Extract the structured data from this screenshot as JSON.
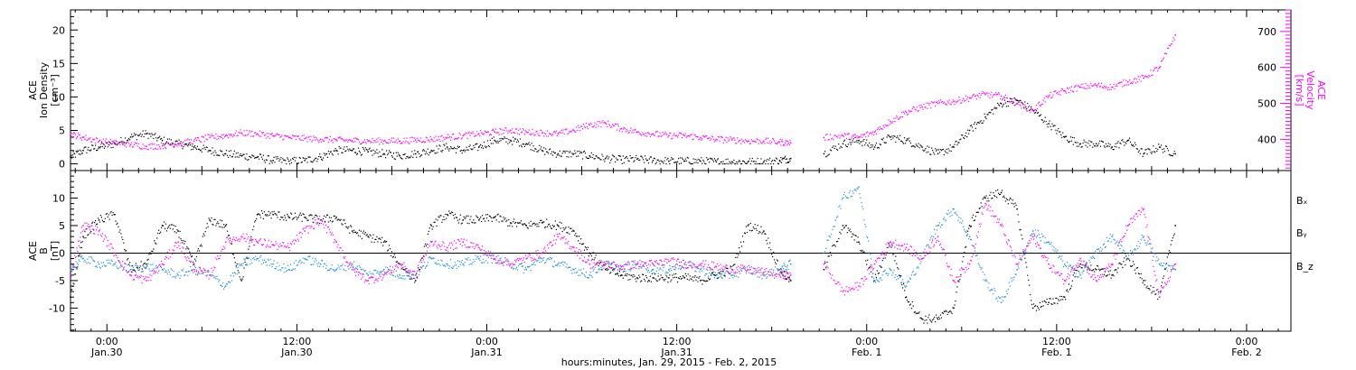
{
  "chart_data": [
    {
      "type": "scatter",
      "panel": "top",
      "ylabel_left": [
        "ACE",
        "Ion Density",
        "[cm⁻³]"
      ],
      "ylabel_right": [
        "ACE",
        "Velocity",
        "[km/s]"
      ],
      "xlabel": "hours:minutes, Jan. 29, 2015 - Feb.  2, 2015",
      "x_ticks": [
        {
          "time": "0:00",
          "date": "Jan.30",
          "hours": 0
        },
        {
          "time": "12:00",
          "date": "Jan.30",
          "hours": 12
        },
        {
          "time": "0:00",
          "date": "Jan.31",
          "hours": 24
        },
        {
          "time": "12:00",
          "date": "Jan.31",
          "hours": 36
        },
        {
          "time": "0:00",
          "date": "Feb. 1",
          "hours": 48
        },
        {
          "time": "12:00",
          "date": "Feb. 1",
          "hours": 60
        },
        {
          "time": "0:00",
          "date": "Feb. 2",
          "hours": 72
        }
      ],
      "xlim_hours": [
        -2.3,
        74.8
      ],
      "y_left": {
        "ticks": [
          0,
          5,
          10,
          15,
          20
        ],
        "lim": [
          -1,
          23
        ]
      },
      "y_right": {
        "ticks": [
          400,
          500,
          600,
          700
        ],
        "lim": [
          313,
          760
        ]
      },
      "series": [
        {
          "axis": "left",
          "color": "#000000",
          "x": [
            -2.3,
            -1.5,
            -0.5,
            0.5,
            1.5,
            2.5,
            3.5,
            4.5,
            5.5,
            6.5,
            7.5,
            8.5,
            9.5,
            10.5,
            11.5,
            12.5,
            13.5,
            14.5,
            15.5,
            16.5,
            17.5,
            18.5,
            19.5,
            20.5,
            21.5,
            22.5,
            23.5,
            24.5,
            25.5,
            26.5,
            27.5,
            28.5,
            29.5,
            30.5,
            31.5,
            32.5,
            33.5,
            34.5,
            35.5,
            36.5,
            37.5,
            38.5,
            39.5,
            40.5,
            41.5,
            42.5,
            43.2,
            45.3,
            46.5,
            47.5,
            48.5,
            49.5,
            50.5,
            51.5,
            52.5,
            53.5,
            54.5,
            55.5,
            56.5,
            57.5,
            58.5,
            59.5,
            60.5,
            61.5,
            62.5,
            63.5,
            64.5,
            65.5,
            66.5,
            67.5
          ],
          "y": [
            1.0,
            2.0,
            2.5,
            3.0,
            4.0,
            4.5,
            3.5,
            3.0,
            2.5,
            2.0,
            1.5,
            1.2,
            1.0,
            0.5,
            0.4,
            0.5,
            1.0,
            2.0,
            2.0,
            1.8,
            1.5,
            1.2,
            1.5,
            2.0,
            2.5,
            2.0,
            2.5,
            3.5,
            3.5,
            3.0,
            2.0,
            1.5,
            1.5,
            1.2,
            0.8,
            0.6,
            0.7,
            0.5,
            0.4,
            0.4,
            0.4,
            0.3,
            0.3,
            0.3,
            0.3,
            0.5,
            0.8,
            1.5,
            3.0,
            3.5,
            2.5,
            4.0,
            3.5,
            2.5,
            1.5,
            2.5,
            5.0,
            7.0,
            9.0,
            9.5,
            8.0,
            6.0,
            4.0,
            3.0,
            3.0,
            2.5,
            3.5,
            1.5,
            2.5,
            1.5
          ]
        },
        {
          "axis": "right",
          "color": "#ff00ff",
          "x": [
            -2.3,
            -1.5,
            -0.5,
            0.5,
            1.5,
            2.5,
            3.5,
            4.5,
            5.5,
            6.5,
            7.5,
            8.5,
            9.5,
            10.5,
            11.5,
            12.5,
            13.5,
            14.5,
            15.5,
            16.5,
            17.5,
            18.5,
            19.5,
            20.5,
            21.5,
            22.5,
            23.5,
            24.5,
            25.5,
            26.5,
            27.5,
            28.5,
            29.5,
            30.5,
            31.5,
            32.5,
            33.5,
            34.5,
            35.5,
            36.5,
            37.5,
            38.5,
            39.5,
            40.5,
            41.5,
            42.5,
            43.2,
            45.3,
            46.5,
            47.5,
            48.5,
            49.5,
            50.5,
            51.5,
            52.5,
            53.5,
            54.5,
            55.5,
            56.5,
            57.5,
            58.5,
            59.5,
            60.5,
            61.5,
            62.5,
            63.5,
            64.5,
            65.5,
            66.5,
            67.5
          ],
          "y": [
            415,
            405,
            395,
            390,
            385,
            380,
            382,
            388,
            395,
            405,
            410,
            418,
            415,
            410,
            405,
            402,
            400,
            398,
            396,
            395,
            395,
            395,
            398,
            400,
            405,
            410,
            415,
            420,
            425,
            420,
            418,
            415,
            425,
            440,
            445,
            430,
            420,
            415,
            410,
            410,
            405,
            400,
            398,
            395,
            395,
            392,
            390,
            405,
            410,
            405,
            420,
            450,
            475,
            490,
            500,
            505,
            515,
            525,
            520,
            500,
            480,
            520,
            535,
            545,
            550,
            545,
            560,
            570,
            600,
            690
          ]
        }
      ]
    },
    {
      "type": "scatter",
      "panel": "bottom",
      "ylabel_left": [
        "ACE",
        "B",
        "[nT]"
      ],
      "legend": [
        "Bₓ",
        "Bᵧ",
        "B_z"
      ],
      "legend_position": "right",
      "xlim_hours": [
        -2.3,
        74.8
      ],
      "y_left": {
        "ticks": [
          -10,
          -5,
          0,
          5,
          10
        ],
        "lim": [
          -14.2,
          15
        ]
      },
      "zero_line": true,
      "series": [
        {
          "name": "Bₓ",
          "color": "#000000",
          "x": [
            -2.3,
            -1.5,
            -0.5,
            0.5,
            1.5,
            2.5,
            3.5,
            4.5,
            5.5,
            6.5,
            7.5,
            8.5,
            9.5,
            10.5,
            11.5,
            12.5,
            13.5,
            14.5,
            15.5,
            16.5,
            17.5,
            18.5,
            19.5,
            20.5,
            21.5,
            22.5,
            23.5,
            24.5,
            25.5,
            26.5,
            27.5,
            28.5,
            29.5,
            30.5,
            31.5,
            32.5,
            33.5,
            34.5,
            35.5,
            36.5,
            37.5,
            38.5,
            39.5,
            40.5,
            41.5,
            42.5,
            43.2,
            45.3,
            46.5,
            47.5,
            48.5,
            49.5,
            50.5,
            51.5,
            52.5,
            53.5,
            54.5,
            55.5,
            56.5,
            57.5,
            58.5,
            59.5,
            60.5,
            61.5,
            62.5,
            63.5,
            64.5,
            65.5,
            66.5,
            67.5
          ],
          "y": [
            -8,
            3,
            6,
            7,
            -3,
            -2,
            5,
            4,
            -2,
            6,
            5,
            -5,
            7,
            7,
            6.5,
            6.5,
            6,
            6.5,
            4,
            3,
            2,
            -2,
            -5,
            5,
            7,
            6,
            6,
            6.5,
            5.5,
            5,
            5.5,
            5,
            4,
            0,
            -3,
            -4,
            -4.5,
            -4.5,
            -4.5,
            -4.5,
            -5,
            -4,
            -3,
            5,
            4,
            -3,
            -5,
            -3,
            5,
            2,
            -5,
            2,
            -8,
            -12,
            -12,
            -10,
            5,
            10,
            11,
            8,
            -10,
            -9,
            -8,
            -2,
            -3,
            -4,
            -1,
            -5,
            -8,
            5
          ]
        },
        {
          "name": "Bᵧ",
          "color": "#1e90e0",
          "x": [
            -2.3,
            -1.5,
            -0.5,
            0.5,
            1.5,
            2.5,
            3.5,
            4.5,
            5.5,
            6.5,
            7.5,
            8.5,
            9.5,
            10.5,
            11.5,
            12.5,
            13.5,
            14.5,
            15.5,
            16.5,
            17.5,
            18.5,
            19.5,
            20.5,
            21.5,
            22.5,
            23.5,
            24.5,
            25.5,
            26.5,
            27.5,
            28.5,
            29.5,
            30.5,
            31.5,
            32.5,
            33.5,
            34.5,
            35.5,
            36.5,
            37.5,
            38.5,
            39.5,
            40.5,
            41.5,
            42.5,
            43.2,
            45.3,
            46.5,
            47.5,
            48.5,
            49.5,
            50.5,
            51.5,
            52.5,
            53.5,
            54.5,
            55.5,
            56.5,
            57.5,
            58.5,
            59.5,
            60.5,
            61.5,
            62.5,
            63.5,
            64.5,
            65.5,
            66.5,
            67.5
          ],
          "y": [
            -3,
            -1,
            -2,
            -2,
            -3,
            -2.5,
            -3,
            -4,
            -3,
            -4,
            -6,
            -2,
            -1,
            -2,
            -3,
            -1,
            -2,
            -3,
            -2,
            -4,
            -3,
            -4,
            -4,
            -1,
            -2,
            -2,
            -1,
            -1,
            -2,
            -3,
            -1,
            -2,
            -3,
            -4,
            -2,
            -3,
            -2,
            -3,
            -3,
            -2,
            -3,
            -4,
            -4,
            -3,
            -4,
            -3,
            -2,
            0,
            10,
            12,
            -5,
            -3,
            -6,
            -1,
            5,
            8,
            3,
            -5,
            -9,
            -3,
            4,
            2,
            -2,
            -4,
            0,
            3,
            -1,
            3,
            -2,
            -3
          ]
        },
        {
          "name": "B_z",
          "color": "#ff00ff",
          "x": [
            -2.3,
            -1.5,
            -0.5,
            0.5,
            1.5,
            2.5,
            3.5,
            4.5,
            5.5,
            6.5,
            7.5,
            8.5,
            9.5,
            10.5,
            11.5,
            12.5,
            13.5,
            14.5,
            15.5,
            16.5,
            17.5,
            18.5,
            19.5,
            20.5,
            21.5,
            22.5,
            23.5,
            24.5,
            25.5,
            26.5,
            27.5,
            28.5,
            29.5,
            30.5,
            31.5,
            32.5,
            33.5,
            34.5,
            35.5,
            36.5,
            37.5,
            38.5,
            39.5,
            40.5,
            41.5,
            42.5,
            43.2,
            45.3,
            46.5,
            47.5,
            48.5,
            49.5,
            50.5,
            51.5,
            52.5,
            53.5,
            54.5,
            55.5,
            56.5,
            57.5,
            58.5,
            59.5,
            60.5,
            61.5,
            62.5,
            63.5,
            64.5,
            65.5,
            66.5,
            67.5
          ],
          "y": [
            -4,
            5,
            4,
            0,
            -4,
            -5,
            -2,
            2,
            -3,
            -4,
            2,
            3,
            2,
            1.5,
            1,
            4,
            6,
            2,
            -3,
            -5,
            -4,
            -2,
            -4,
            2,
            1,
            2,
            1,
            -1,
            -2,
            -1,
            0,
            3,
            1,
            -2,
            -2,
            -2.5,
            -2,
            -2,
            -1.5,
            -2,
            -2,
            -2.5,
            -3,
            -3,
            -3.5,
            -4,
            -4,
            -2,
            -7,
            -6,
            -2,
            2,
            1,
            -1,
            3,
            -5,
            -2,
            9,
            5,
            -2,
            3,
            -2,
            -5,
            -1,
            -5,
            -2,
            5,
            8,
            -8,
            -2
          ]
        }
      ]
    }
  ]
}
